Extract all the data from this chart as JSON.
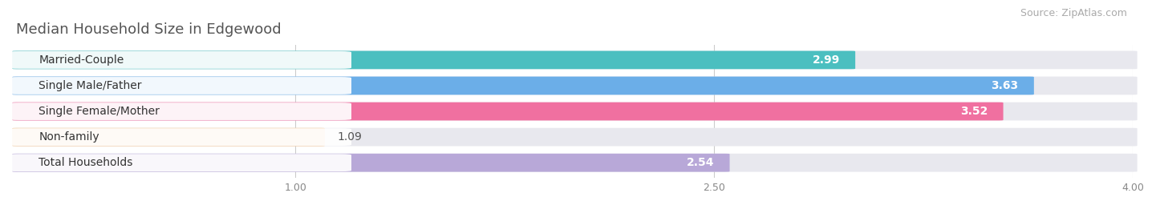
{
  "title": "Median Household Size in Edgewood",
  "source": "Source: ZipAtlas.com",
  "categories": [
    "Married-Couple",
    "Single Male/Father",
    "Single Female/Mother",
    "Non-family",
    "Total Households"
  ],
  "values": [
    2.99,
    3.63,
    3.52,
    1.09,
    2.54
  ],
  "bar_colors": [
    "#4BBFC0",
    "#6BAEE8",
    "#F070A0",
    "#F5C896",
    "#B8A8D8"
  ],
  "xlim": [
    0,
    4.0
  ],
  "xticks": [
    1.0,
    2.5,
    4.0
  ],
  "xtick_labels": [
    "1.00",
    "2.50",
    "4.00"
  ],
  "background_color": "#f5f5fa",
  "bar_background": "#e8e8ee",
  "title_fontsize": 13,
  "source_fontsize": 9,
  "label_fontsize": 10,
  "value_fontsize": 10
}
